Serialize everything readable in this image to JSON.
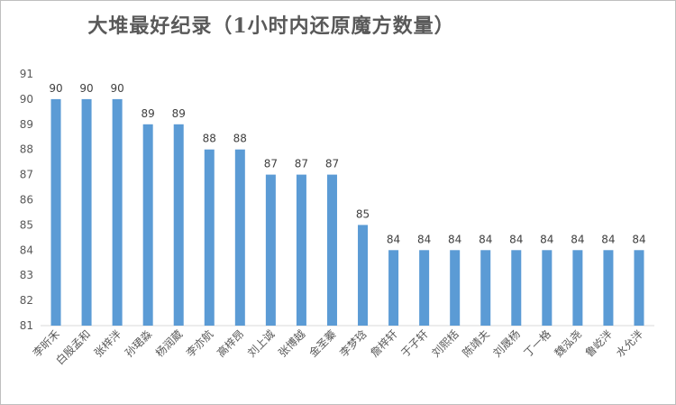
{
  "chart_data": {
    "type": "bar",
    "title": "大堆最好纪录（1小时内还原魔方数量）",
    "xlabel": "",
    "ylabel": "",
    "categories": [
      "李昕禾",
      "白殷孟和",
      "张梓泮",
      "孙珺淼",
      "杨润葳",
      "李亦航",
      "高梓昂",
      "刘上诚",
      "张博越",
      "金圣蓁",
      "李梦琀",
      "詹梓轩",
      "于子轩",
      "刘熙栝",
      "陈靖夫",
      "刘晟杨",
      "丁一格",
      "魏泓尧",
      "鲁屹泮",
      "水允泮"
    ],
    "values": [
      90,
      90,
      90,
      89,
      89,
      88,
      88,
      87,
      87,
      87,
      85,
      84,
      84,
      84,
      84,
      84,
      84,
      84,
      84,
      84
    ],
    "ylim": [
      81,
      91
    ],
    "yticks": [
      81,
      82,
      83,
      84,
      85,
      86,
      87,
      88,
      89,
      90,
      91
    ],
    "grid": false,
    "legend": "none",
    "bar_color": "#5b9bd5",
    "data_labels": true
  }
}
